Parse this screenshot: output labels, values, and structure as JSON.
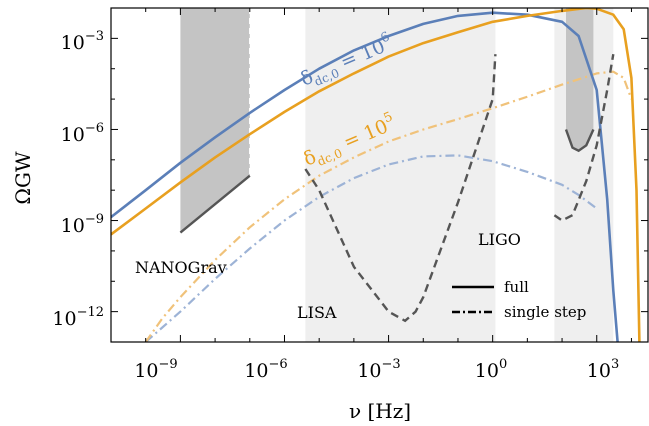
{
  "chart_data": {
    "type": "line",
    "title": "",
    "xlabel": "ν [Hz]",
    "ylabel": "ΩGW",
    "x_scale": "log",
    "y_scale": "log",
    "xlim": [
      1e-11,
      30000.0
    ],
    "ylim": [
      1e-13,
      0.01
    ],
    "grid": false,
    "x_ticks": [
      {
        "value": 1e-09,
        "base": "10",
        "exp": "−9"
      },
      {
        "value": 1e-06,
        "base": "10",
        "exp": "−6"
      },
      {
        "value": 0.001,
        "base": "10",
        "exp": "−3"
      },
      {
        "value": 1,
        "base": "10",
        "exp": "0"
      },
      {
        "value": 1000.0,
        "base": "10",
        "exp": "3"
      }
    ],
    "y_ticks": [
      {
        "value": 1e-12,
        "base": "10",
        "exp": "−12"
      },
      {
        "value": 1e-09,
        "base": "10",
        "exp": "−9"
      },
      {
        "value": 1e-06,
        "base": "10",
        "exp": "−6"
      },
      {
        "value": 0.001,
        "base": "10",
        "exp": "−3"
      }
    ],
    "colors": {
      "blue": "#5b7fb8",
      "orange": "#e8a020",
      "blue_light": "#9db3d6",
      "orange_light": "#f0c27a",
      "detector": "#555555"
    },
    "series": [
      {
        "label_id": "delta6_full",
        "color": "blue",
        "style": "solid",
        "x": [
          1e-11,
          1e-10,
          1e-09,
          1e-08,
          1e-07,
          1e-06,
          1e-05,
          0.0001,
          0.001,
          0.01,
          0.1,
          1,
          10,
          100,
          300,
          1000,
          2000,
          3000,
          4000,
          5000
        ],
        "y": [
          1.3e-09,
          1e-08,
          8e-08,
          5.5e-07,
          3.5e-06,
          2e-05,
          0.0001,
          0.0004,
          0.0012,
          0.003,
          0.0055,
          0.007,
          0.006,
          0.0035,
          0.0012,
          2e-05,
          5e-09,
          5e-12,
          1e-13,
          1e-14
        ]
      },
      {
        "label_id": "delta5_full",
        "color": "orange",
        "style": "solid",
        "x": [
          1e-11,
          1e-10,
          1e-09,
          1e-08,
          1e-07,
          1e-06,
          1e-05,
          0.0001,
          0.001,
          0.01,
          0.1,
          1,
          10,
          100,
          500,
          1000,
          3000,
          6000,
          10000,
          14000,
          17000
        ],
        "y": [
          3.5e-10,
          2.5e-09,
          1.8e-08,
          1.2e-07,
          7e-07,
          3.8e-06,
          1.8e-05,
          7e-05,
          0.00025,
          0.0007,
          0.0016,
          0.0035,
          0.0055,
          0.008,
          0.01,
          0.0095,
          0.006,
          0.002,
          5e-05,
          1e-08,
          1e-13
        ]
      },
      {
        "label_id": "delta6_single",
        "color": "blue_light",
        "style": "dashdot",
        "x": [
          1e-10,
          3e-10,
          1e-09,
          1e-08,
          1e-07,
          1e-06,
          1e-05,
          0.0001,
          0.001,
          0.01,
          0.1,
          1,
          10,
          100,
          300,
          1000
        ],
        "y": [
          1e-13,
          3e-13,
          1e-12,
          1.2e-11,
          1.2e-10,
          1e-09,
          6e-09,
          2.5e-08,
          7e-08,
          1.3e-07,
          1.4e-07,
          9e-08,
          4e-08,
          1.5e-08,
          7e-09,
          2.5e-09
        ]
      },
      {
        "label_id": "delta5_single",
        "color": "orange_light",
        "style": "dashdot",
        "x": [
          1e-10,
          3e-10,
          1e-09,
          1e-08,
          1e-07,
          1e-06,
          1e-05,
          0.0001,
          0.001,
          0.01,
          0.1,
          1,
          10,
          100,
          1000,
          3000,
          6000,
          10000
        ],
        "y": [
          1e-13,
          6e-13,
          3e-12,
          5e-11,
          6e-10,
          5e-09,
          3e-08,
          1.2e-07,
          4e-07,
          1e-06,
          2.2e-06,
          5e-06,
          1.2e-05,
          3e-05,
          7e-05,
          8e-05,
          5e-05,
          1e-05
        ]
      }
    ],
    "detectors": [
      {
        "id": "lisa",
        "x": [
          4e-06,
          1e-05,
          0.0001,
          0.001,
          0.003,
          0.006,
          0.01,
          0.1,
          1,
          1.2
        ],
        "y": [
          5e-08,
          1e-08,
          3e-11,
          1e-12,
          5e-13,
          1e-12,
          3e-12,
          4e-09,
          1e-05,
          0.0003
        ]
      },
      {
        "id": "ligo",
        "x": [
          60,
          100,
          200,
          500,
          1000,
          2000,
          3000
        ],
        "y": [
          1.5e-09,
          1e-09,
          1.5e-09,
          2e-08,
          3e-07,
          2e-05,
          0.0003
        ]
      },
      {
        "id": "ligo_future",
        "x": [
          130,
          200,
          300,
          500,
          800
        ],
        "y": [
          1e-06,
          2.5e-07,
          2e-07,
          3e-07,
          1e-06
        ]
      },
      {
        "id": "nanograv",
        "x": [
          1e-09,
          1e-07
        ],
        "y": [
          4e-10,
          3e-08
        ]
      }
    ],
    "regions": [
      {
        "id": "lisa_band",
        "x_range": [
          4e-06,
          1.2
        ],
        "shade": "light"
      },
      {
        "id": "ligo_band",
        "x_range": [
          60,
          3000
        ],
        "shade": "light"
      },
      {
        "id": "nanograv_band",
        "x_range": [
          1e-09,
          1e-07
        ],
        "y_bottom": "detector",
        "shade": "dark"
      },
      {
        "id": "ligo_future_band",
        "x_range": [
          130,
          800
        ],
        "y_bottom": "detector",
        "shade": "dark"
      }
    ],
    "labels": {
      "nanograv": "NANOGrav",
      "lisa": "LISA",
      "ligo": "LIGO",
      "delta6": {
        "prefix": "δ",
        "sub": "dc,0",
        "eq": " = 10",
        "exp": "6"
      },
      "delta5": {
        "prefix": "δ",
        "sub": "dc,0",
        "eq": " = 10",
        "exp": "5"
      }
    },
    "legend": {
      "position": "bottom-right",
      "entries": [
        {
          "label": "full",
          "style": "solid"
        },
        {
          "label": "single step",
          "style": "dashdot"
        }
      ]
    }
  }
}
